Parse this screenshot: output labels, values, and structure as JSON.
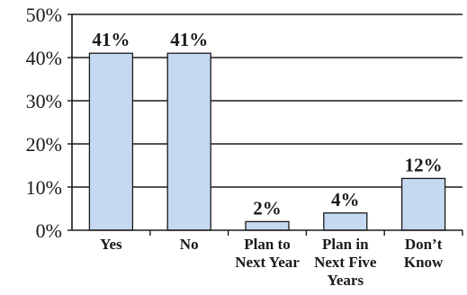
{
  "chart_data": {
    "type": "bar",
    "categories": [
      [
        "Yes"
      ],
      [
        "No"
      ],
      [
        "Plan to",
        "Next Year"
      ],
      [
        "Plan in",
        "Next Five",
        "Years"
      ],
      [
        "Don’t",
        "Know"
      ]
    ],
    "values": [
      41,
      41,
      2,
      4,
      12
    ],
    "data_labels": [
      "41%",
      "41%",
      "2%",
      "4%",
      "12%"
    ],
    "yticks": [
      {
        "value": 0,
        "label": "0%"
      },
      {
        "value": 10,
        "label": "10%"
      },
      {
        "value": 20,
        "label": "20%"
      },
      {
        "value": 30,
        "label": "30%"
      },
      {
        "value": 40,
        "label": "40%"
      },
      {
        "value": 50,
        "label": "50%"
      }
    ],
    "ylim": [
      0,
      50
    ],
    "grid": true,
    "bar_color": "#c5d9f1",
    "bar_edge_color": "#1a1a1a",
    "title": "",
    "xlabel": "",
    "ylabel": ""
  }
}
